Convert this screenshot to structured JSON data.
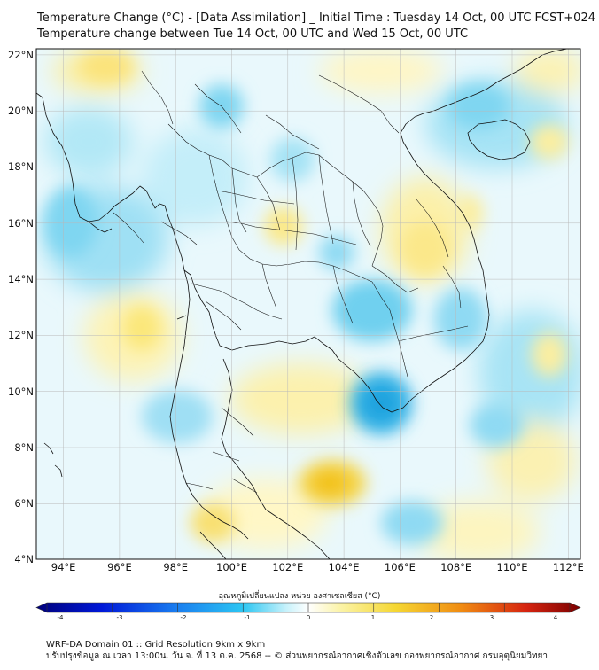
{
  "title": {
    "line1": "Temperature Change (°C) - [Data Assimilation] _ Initial Time : Tuesday 14 Oct, 00 UTC FCST+024",
    "line2": "Temperature change between Tue 14 Oct, 00 UTC and Wed 15 Oct, 00 UTC"
  },
  "map": {
    "lat_labels": [
      "4°N",
      "6°N",
      "8°N",
      "10°N",
      "12°N",
      "14°N",
      "16°N",
      "18°N",
      "20°N",
      "22°N"
    ],
    "lon_labels": [
      "94°E",
      "96°E",
      "98°E",
      "100°E",
      "102°E",
      "104°E",
      "106°E",
      "108°E",
      "110°E",
      "112°E"
    ],
    "lat_range": [
      4,
      22.2
    ],
    "lon_range": [
      93.1,
      112.5
    ],
    "gridlines": true,
    "field_colors": {
      "cool_strong": "#1aa0dd",
      "cool": "#6fd0ef",
      "cool_light": "#b9ecf8",
      "neutral": "#ffffff",
      "warm_light": "#fdf6b8",
      "warm": "#fbe77a",
      "warm_strong": "#f2c118"
    }
  },
  "colorbar": {
    "label": "อุณหภูมิเปลี่ยนแปลง หน่วย องศาเซลเซียส (°C)",
    "ticks": [
      "-4",
      "-3",
      "-2",
      "-1",
      "0",
      "1",
      "2",
      "3",
      "4"
    ],
    "range": [
      -4,
      4
    ],
    "colors": [
      "#00007a",
      "#0018d8",
      "#1a7ff0",
      "#2cc6f2",
      "#c8f2fb",
      "#ffffff",
      "#fbf3a6",
      "#f5d733",
      "#f08c12",
      "#d62410",
      "#7a0000"
    ]
  },
  "footer": {
    "line1": "WRF-DA Domain 01 :: Grid Resolution 9km x 9km",
    "line2": "ปรับปรุงข้อมูล ณ เวลา 13:00น. วัน จ. ที่ 13 ต.ค. 2568 -- © ส่วนพยากรณ์อากาศเชิงตัวเลข กองพยากรณ์อากาศ กรมอุตุนิยมวิทยา"
  }
}
